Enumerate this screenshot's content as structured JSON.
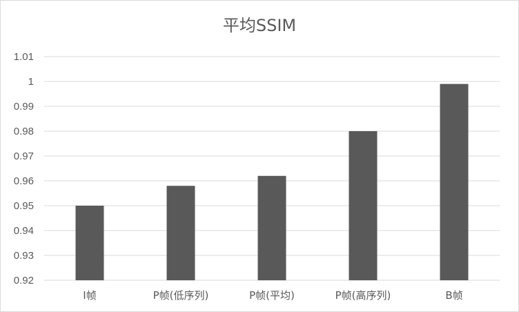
{
  "chart_data": {
    "type": "bar",
    "title": "平均SSIM",
    "categories": [
      "I帧",
      "P帧(低序列)",
      "P帧(平均)",
      "P帧(高序列)",
      "B帧"
    ],
    "values": [
      0.95,
      0.958,
      0.962,
      0.98,
      0.999
    ],
    "ylim": [
      0.92,
      1.01
    ],
    "yticks": [
      "0.92",
      "0.93",
      "0.94",
      "0.95",
      "0.96",
      "0.97",
      "0.98",
      "0.99",
      "1",
      "1.01"
    ],
    "grid": true,
    "legend": "none",
    "bar_color": "#595959",
    "grid_color": "#d9d9d9",
    "text_color": "#595959"
  }
}
